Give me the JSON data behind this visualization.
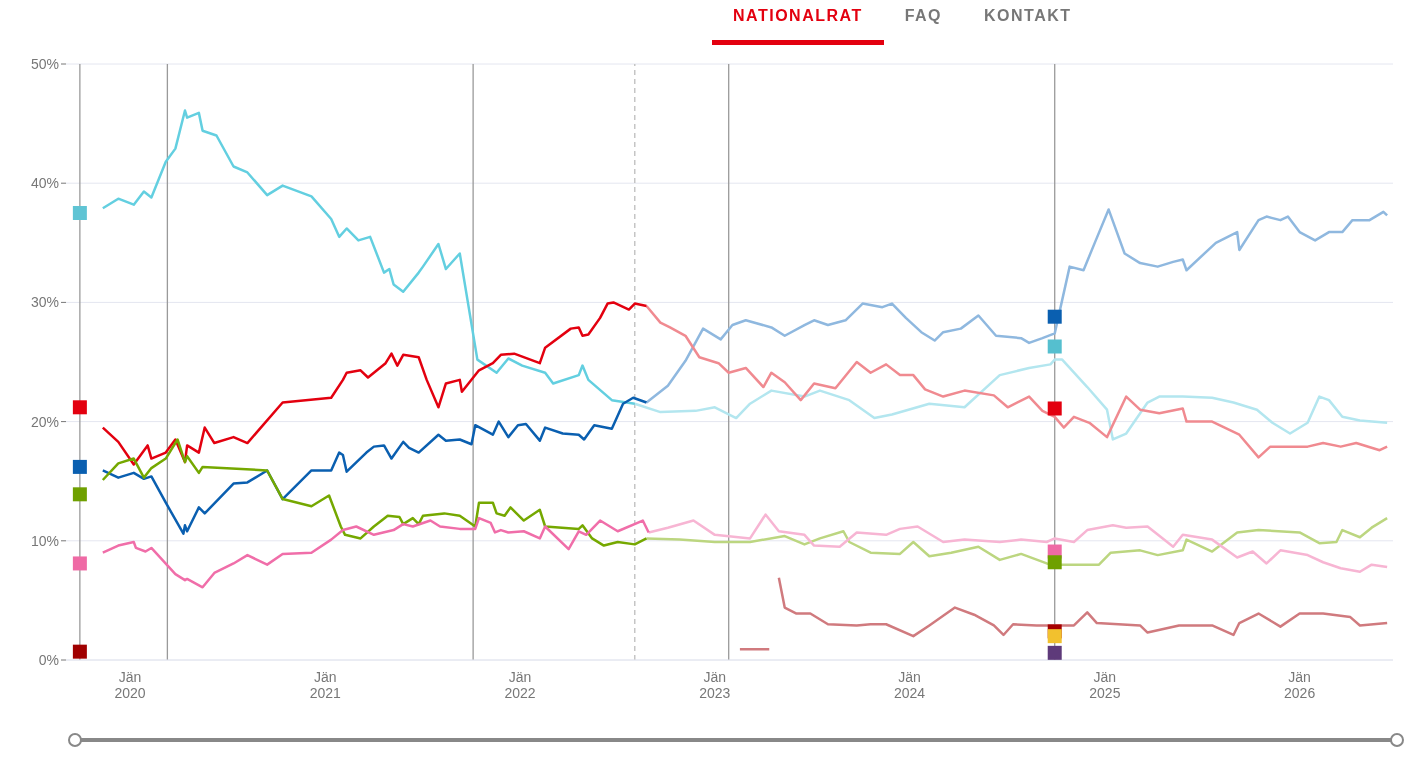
{
  "chart_data": {
    "type": "line",
    "xlim": [
      "2019-09-03",
      "2026-06-25"
    ],
    "ylim": [
      0,
      50
    ],
    "xticks": [
      {
        "value": "2020-01-01",
        "label": "Jän 2020"
      },
      {
        "value": "2021-01-01",
        "label": "Jän 2021"
      },
      {
        "value": "2022-01-01",
        "label": "Jän 2022"
      },
      {
        "value": "2023-01-01",
        "label": "Jän 2023"
      },
      {
        "value": "2024-01-01",
        "label": "Jän 2024"
      },
      {
        "value": "2025-01-01",
        "label": "Jän 2025"
      },
      {
        "value": "2026-01-01",
        "label": "Jän 2026"
      }
    ],
    "yticks": [
      {
        "value": 0,
        "label": "0%"
      },
      {
        "value": 10,
        "label": "10%"
      },
      {
        "value": 20,
        "label": "20%"
      },
      {
        "value": 30,
        "label": "30%"
      },
      {
        "value": 40,
        "label": "40%"
      },
      {
        "value": 50,
        "label": "50%"
      }
    ],
    "grid": "y",
    "marker": "none",
    "line_style": "solid",
    "annotations": [
      "NATIONALRAT",
      "FAQ",
      "KONTAKT"
    ],
    "ref_lines": [
      {
        "axis": "x",
        "value": "2019-09-29",
        "color": "#9a9a9a",
        "line_style": "solid"
      },
      {
        "axis": "x",
        "value": "2020-03-11",
        "color": "#9a9a9a",
        "line_style": "solid"
      },
      {
        "axis": "x",
        "value": "2021-10-05",
        "color": "#9a9a9a",
        "line_style": "solid"
      },
      {
        "axis": "x",
        "value": "2022-08-04",
        "color": "#bdbdbd",
        "line_style": "dashed"
      },
      {
        "axis": "x",
        "value": "2023-01-27",
        "color": "#9a9a9a",
        "line_style": "solid"
      },
      {
        "axis": "x",
        "value": "2024-09-29",
        "color": "#9a9a9a",
        "line_style": "solid"
      }
    ],
    "series": [
      {
        "color": "#b3e6ef",
        "x": [
          "2022-08-04",
          "2022-09-21",
          "2022-11-26",
          "2023-01-01",
          "2023-02-10",
          "2023-03-08",
          "2023-04-17",
          "2023-06-18",
          "2023-07-17",
          "2023-09-10",
          "2023-10-27",
          "2023-11-29",
          "2024-02-07",
          "2024-04-13",
          "2024-06-18",
          "2024-08-12",
          "2024-09-21",
          "2024-09-29",
          "2024-10-13",
          "2024-11-29",
          "2025-01-05",
          "2025-01-16",
          "2025-02-10",
          "2025-03-22",
          "2025-04-13",
          "2025-05-27",
          "2025-07-21",
          "2025-08-30",
          "2025-10-13",
          "2025-11-11",
          "2025-12-14",
          "2026-01-16",
          "2026-02-07",
          "2026-02-25",
          "2026-03-22",
          "2026-04-24",
          "2026-06-14"
        ],
        "values": [
          21.5,
          20.8,
          20.9,
          21.2,
          20.3,
          21.5,
          22.6,
          22.1,
          22.6,
          21.8,
          20.3,
          20.6,
          21.5,
          21.2,
          23.9,
          24.5,
          24.8,
          25.2,
          25.2,
          22.9,
          21.0,
          18.5,
          19.0,
          21.6,
          22.1,
          22.1,
          22.0,
          21.6,
          21.0,
          19.9,
          19.0,
          19.9,
          22.1,
          21.8,
          20.4,
          20.1,
          19.9
        ]
      },
      {
        "color": "#8fb8df",
        "x": [
          "2022-08-26",
          "2022-10-05",
          "2022-11-07",
          "2022-12-10",
          "2023-01-12",
          "2023-02-03",
          "2023-02-28",
          "2023-04-17",
          "2023-05-12",
          "2023-06-18",
          "2023-07-06",
          "2023-08-01",
          "2023-09-03",
          "2023-10-05",
          "2023-11-11",
          "2023-11-29",
          "2023-12-25",
          "2024-01-23",
          "2024-02-17",
          "2024-03-04",
          "2024-04-06",
          "2024-05-09",
          "2024-06-11",
          "2024-07-28",
          "2024-08-12",
          "2024-09-06",
          "2024-09-29",
          "2024-10-27",
          "2024-11-22",
          "2024-12-14",
          "2025-01-08",
          "2025-02-07",
          "2025-03-08",
          "2025-04-10",
          "2025-05-09",
          "2025-05-27",
          "2025-06-03",
          "2025-07-28",
          "2025-09-06",
          "2025-09-10",
          "2025-10-16",
          "2025-10-31",
          "2025-11-26",
          "2025-12-10",
          "2026-01-01",
          "2026-01-30",
          "2026-02-25",
          "2026-03-22",
          "2026-04-10",
          "2026-05-12",
          "2026-06-07",
          "2026-06-14"
        ],
        "values": [
          21.6,
          23.0,
          25.1,
          27.8,
          26.9,
          28.1,
          28.5,
          27.9,
          27.2,
          28.1,
          28.5,
          28.1,
          28.5,
          29.9,
          29.6,
          29.9,
          28.7,
          27.5,
          26.8,
          27.5,
          27.8,
          28.9,
          27.2,
          27.0,
          26.6,
          27.0,
          27.4,
          33.0,
          32.7,
          35.1,
          37.8,
          34.1,
          33.3,
          33.0,
          33.4,
          33.6,
          32.7,
          35.0,
          35.9,
          34.4,
          36.9,
          37.2,
          36.9,
          37.2,
          35.9,
          35.2,
          35.9,
          35.9,
          36.9,
          36.9,
          37.6,
          37.3
        ]
      },
      {
        "color": "#f08a90",
        "x": [
          "2022-08-26",
          "2022-09-21",
          "2022-10-09",
          "2022-11-07",
          "2022-12-03",
          "2023-01-08",
          "2023-01-27",
          "2023-02-28",
          "2023-04-02",
          "2023-04-17",
          "2023-05-12",
          "2023-06-11",
          "2023-07-06",
          "2023-08-15",
          "2023-09-24",
          "2023-10-20",
          "2023-11-18",
          "2023-12-14",
          "2024-01-08",
          "2024-01-30",
          "2024-03-04",
          "2024-04-13",
          "2024-06-07",
          "2024-07-03",
          "2024-08-12",
          "2024-09-06",
          "2024-09-29",
          "2024-10-16",
          "2024-11-04",
          "2024-12-03",
          "2025-01-05",
          "2025-02-10",
          "2025-03-08",
          "2025-04-13",
          "2025-05-27",
          "2025-06-03",
          "2025-07-21",
          "2025-09-10",
          "2025-10-16",
          "2025-11-07",
          "2026-01-16",
          "2026-02-14",
          "2026-03-19",
          "2026-04-17",
          "2026-05-31",
          "2026-06-14"
        ],
        "values": [
          29.7,
          28.3,
          27.9,
          27.2,
          25.4,
          24.9,
          24.1,
          24.5,
          22.9,
          24.1,
          23.3,
          21.8,
          23.2,
          22.8,
          25.0,
          24.1,
          24.8,
          23.9,
          23.9,
          22.7,
          22.1,
          22.6,
          22.2,
          21.2,
          22.1,
          20.9,
          20.4,
          19.5,
          20.4,
          19.9,
          18.7,
          22.1,
          21.0,
          20.7,
          21.1,
          20.0,
          20.0,
          18.9,
          17.0,
          17.9,
          17.9,
          18.2,
          17.9,
          18.2,
          17.6,
          17.9
        ]
      },
      {
        "color": "#bcd680",
        "x": [
          "2022-08-26",
          "2022-10-27",
          "2023-01-01",
          "2023-03-08",
          "2023-05-12",
          "2023-06-18",
          "2023-07-17",
          "2023-08-30",
          "2023-09-10",
          "2023-10-20",
          "2023-12-14",
          "2024-01-08",
          "2024-02-07",
          "2024-03-19",
          "2024-05-09",
          "2024-06-18",
          "2024-07-28",
          "2024-09-14",
          "2024-09-29",
          "2024-12-21",
          "2025-01-12",
          "2025-03-08",
          "2025-04-10",
          "2025-05-27",
          "2025-06-03",
          "2025-07-21",
          "2025-09-06",
          "2025-10-16",
          "2026-01-01",
          "2026-02-07",
          "2026-03-11",
          "2026-03-22",
          "2026-04-24",
          "2026-05-16",
          "2026-06-14"
        ],
        "values": [
          10.2,
          10.1,
          9.9,
          9.9,
          10.4,
          9.7,
          10.2,
          10.8,
          9.9,
          9.0,
          8.9,
          9.9,
          8.7,
          9.0,
          9.5,
          8.4,
          8.9,
          8.1,
          8.0,
          8.0,
          9.0,
          9.2,
          8.8,
          9.2,
          10.1,
          9.1,
          10.7,
          10.9,
          10.7,
          9.8,
          9.9,
          10.9,
          10.3,
          11.1,
          11.9
        ]
      },
      {
        "color": "#f7b5d3",
        "x": [
          "2022-08-30",
          "2022-10-05",
          "2022-11-22",
          "2023-01-01",
          "2023-03-08",
          "2023-04-06",
          "2023-05-01",
          "2023-06-18",
          "2023-07-06",
          "2023-08-23",
          "2023-09-24",
          "2023-11-18",
          "2023-12-14",
          "2024-01-16",
          "2024-03-04",
          "2024-04-13",
          "2024-06-18",
          "2024-07-28",
          "2024-09-14",
          "2024-09-29",
          "2024-11-04",
          "2024-11-29",
          "2025-01-16",
          "2025-02-10",
          "2025-03-22",
          "2025-05-09",
          "2025-05-27",
          "2025-07-21",
          "2025-09-06",
          "2025-10-05",
          "2025-10-31",
          "2025-11-26",
          "2026-01-16",
          "2026-02-14",
          "2026-03-19",
          "2026-04-24",
          "2026-05-16",
          "2026-06-14"
        ],
        "values": [
          10.7,
          11.1,
          11.7,
          10.5,
          10.2,
          12.2,
          10.8,
          10.5,
          9.6,
          9.5,
          10.7,
          10.5,
          11.0,
          11.2,
          9.9,
          10.1,
          9.9,
          10.1,
          9.9,
          10.2,
          9.9,
          10.9,
          11.3,
          11.1,
          11.2,
          9.5,
          10.5,
          10.1,
          8.6,
          9.1,
          8.1,
          9.2,
          8.8,
          8.2,
          7.7,
          7.4,
          8.0,
          7.8
        ]
      },
      {
        "color": "#d07a7e",
        "x": [
          "2023-02-17",
          "2023-04-13",
          "2023-04-21",
          "2023-05-01",
          "2023-05-12",
          "2023-06-03",
          "2023-06-29",
          "2023-08-01",
          "2023-09-24",
          "2023-10-20",
          "2023-11-18",
          "2024-01-08",
          "2024-02-07",
          "2024-03-26",
          "2024-05-01",
          "2024-06-07",
          "2024-06-25",
          "2024-07-13",
          "2024-08-26",
          "2024-09-14",
          "2024-09-29",
          "2024-11-04",
          "2024-11-29",
          "2024-12-17",
          "2025-03-08",
          "2025-03-22",
          "2025-05-20",
          "2025-07-21",
          "2025-08-30",
          "2025-09-10",
          "2025-10-16",
          "2025-11-26",
          "2026-01-01",
          "2026-02-14",
          "2026-04-06",
          "2026-04-24",
          "2026-06-14"
        ],
        "values": [
          0.9,
          0.9,
          null,
          6.9,
          4.4,
          3.9,
          3.9,
          3.0,
          2.9,
          3.0,
          3.0,
          2.0,
          2.9,
          4.4,
          3.8,
          2.9,
          2.1,
          3.0,
          2.9,
          2.9,
          2.9,
          2.9,
          4.0,
          3.1,
          2.9,
          2.3,
          2.9,
          2.9,
          2.1,
          3.1,
          3.9,
          2.8,
          3.9,
          3.9,
          3.6,
          2.9,
          3.1
        ]
      },
      {
        "color": "#63cfe0",
        "x": [
          "2019-11-11",
          "2019-12-10",
          "2020-01-08",
          "2020-01-27",
          "2020-02-10",
          "2020-03-08",
          "2020-03-26",
          "2020-04-13",
          "2020-04-17",
          "2020-05-09",
          "2020-05-16",
          "2020-06-11",
          "2020-07-13",
          "2020-08-08",
          "2020-09-14",
          "2020-10-13",
          "2020-12-06",
          "2021-01-12",
          "2021-01-27",
          "2021-02-10",
          "2021-03-04",
          "2021-03-26",
          "2021-04-21",
          "2021-05-01",
          "2021-05-09",
          "2021-05-27",
          "2021-06-25",
          "2021-07-03",
          "2021-08-01",
          "2021-08-15",
          "2021-09-10",
          "2021-10-13",
          "2021-11-18",
          "2021-12-10",
          "2022-01-05",
          "2022-02-17",
          "2022-03-04",
          "2022-04-21",
          "2022-04-28",
          "2022-05-09",
          "2022-06-22",
          "2022-08-04"
        ],
        "values": [
          37.9,
          38.7,
          38.2,
          39.3,
          38.8,
          41.8,
          42.9,
          46.1,
          45.5,
          45.9,
          44.4,
          44.0,
          41.4,
          40.9,
          39.0,
          39.8,
          38.9,
          37.0,
          35.5,
          36.2,
          35.2,
          35.5,
          32.5,
          32.8,
          31.5,
          30.9,
          32.5,
          33.0,
          34.9,
          32.8,
          34.1,
          25.2,
          24.1,
          25.3,
          24.7,
          24.1,
          23.2,
          23.9,
          24.7,
          23.5,
          21.8,
          21.5
        ]
      },
      {
        "color": "#0a5fb0",
        "x": [
          "2019-11-11",
          "2019-12-10",
          "2020-01-08",
          "2020-01-27",
          "2020-02-10",
          "2020-03-08",
          "2020-04-10",
          "2020-04-13",
          "2020-04-17",
          "2020-05-09",
          "2020-05-20",
          "2020-07-13",
          "2020-08-08",
          "2020-09-14",
          "2020-10-13",
          "2020-12-06",
          "2021-01-12",
          "2021-01-27",
          "2021-02-03",
          "2021-02-10",
          "2021-03-19",
          "2021-04-02",
          "2021-04-21",
          "2021-05-05",
          "2021-05-27",
          "2021-06-07",
          "2021-06-25",
          "2021-08-01",
          "2021-08-15",
          "2021-09-10",
          "2021-10-02",
          "2021-10-09",
          "2021-11-11",
          "2021-11-22",
          "2021-12-10",
          "2021-12-28",
          "2022-01-12",
          "2022-02-07",
          "2022-02-17",
          "2022-03-22",
          "2022-04-21",
          "2022-05-01",
          "2022-05-20",
          "2022-06-22",
          "2022-07-13",
          "2022-08-01",
          "2022-08-26"
        ],
        "values": [
          15.9,
          15.3,
          15.7,
          15.2,
          15.4,
          13.2,
          10.6,
          11.3,
          10.8,
          12.8,
          12.3,
          14.8,
          14.9,
          15.9,
          13.5,
          15.9,
          15.9,
          17.4,
          17.2,
          15.8,
          17.4,
          17.9,
          18.0,
          16.9,
          18.3,
          17.8,
          17.4,
          18.9,
          18.4,
          18.5,
          18.1,
          19.7,
          18.9,
          20.0,
          18.7,
          19.7,
          19.8,
          18.4,
          19.5,
          19.0,
          18.9,
          18.5,
          19.7,
          19.4,
          21.5,
          22.0,
          21.6
        ]
      },
      {
        "color": "#e3000f",
        "x": [
          "2019-11-11",
          "2019-12-10",
          "2020-01-08",
          "2020-02-03",
          "2020-02-10",
          "2020-03-08",
          "2020-03-26",
          "2020-04-13",
          "2020-04-17",
          "2020-05-09",
          "2020-05-20",
          "2020-06-07",
          "2020-07-13",
          "2020-08-08",
          "2020-10-13",
          "2021-01-12",
          "2021-02-03",
          "2021-02-10",
          "2021-03-08",
          "2021-03-22",
          "2021-04-24",
          "2021-05-05",
          "2021-05-16",
          "2021-05-27",
          "2021-06-25",
          "2021-07-10",
          "2021-08-01",
          "2021-08-15",
          "2021-09-10",
          "2021-09-14",
          "2021-10-16",
          "2021-11-11",
          "2021-11-26",
          "2021-12-21",
          "2022-02-07",
          "2022-02-17",
          "2022-04-06",
          "2022-04-21",
          "2022-04-28",
          "2022-05-09",
          "2022-05-31",
          "2022-06-14",
          "2022-06-25",
          "2022-07-24",
          "2022-08-04",
          "2022-08-26"
        ],
        "values": [
          19.5,
          18.3,
          16.4,
          18.0,
          16.9,
          17.4,
          18.5,
          16.6,
          18.0,
          17.4,
          19.5,
          18.2,
          18.7,
          18.2,
          21.6,
          22.0,
          23.5,
          24.1,
          24.3,
          23.7,
          24.9,
          25.7,
          24.7,
          25.6,
          25.4,
          23.5,
          21.2,
          23.2,
          23.5,
          22.5,
          24.3,
          24.9,
          25.6,
          25.7,
          24.9,
          26.2,
          27.8,
          27.9,
          27.2,
          27.3,
          28.7,
          29.9,
          30.0,
          29.4,
          29.9,
          29.7
        ]
      },
      {
        "color": "#75a800",
        "x": [
          "2019-11-11",
          "2019-12-10",
          "2020-01-08",
          "2020-01-27",
          "2020-02-10",
          "2020-03-08",
          "2020-03-30",
          "2020-04-13",
          "2020-04-17",
          "2020-05-09",
          "2020-05-16",
          "2020-09-14",
          "2020-10-13",
          "2020-12-06",
          "2021-01-08",
          "2021-01-30",
          "2021-02-07",
          "2021-03-08",
          "2021-04-02",
          "2021-04-28",
          "2021-05-20",
          "2021-05-27",
          "2021-06-14",
          "2021-06-25",
          "2021-07-03",
          "2021-08-12",
          "2021-09-10",
          "2021-10-09",
          "2021-10-16",
          "2021-11-11",
          "2021-11-18",
          "2021-12-03",
          "2021-12-14",
          "2022-01-08",
          "2022-02-07",
          "2022-02-17",
          "2022-04-21",
          "2022-04-28",
          "2022-05-16",
          "2022-06-07",
          "2022-07-03",
          "2022-08-04",
          "2022-08-26"
        ],
        "values": [
          15.1,
          16.5,
          16.9,
          15.3,
          16.1,
          16.9,
          18.5,
          16.6,
          17.1,
          15.7,
          16.2,
          15.9,
          13.5,
          12.9,
          13.8,
          11.2,
          10.5,
          10.2,
          11.2,
          12.1,
          12.0,
          11.4,
          11.9,
          11.4,
          12.1,
          12.3,
          12.1,
          11.2,
          13.2,
          13.2,
          12.3,
          12.1,
          12.8,
          11.7,
          12.6,
          11.2,
          11.0,
          11.3,
          10.2,
          9.6,
          9.9,
          9.7,
          10.2
        ]
      },
      {
        "color": "#f06ea9",
        "x": [
          "2019-11-11",
          "2019-12-10",
          "2020-01-08",
          "2020-01-12",
          "2020-01-30",
          "2020-02-10",
          "2020-03-26",
          "2020-04-13",
          "2020-04-17",
          "2020-05-16",
          "2020-06-07",
          "2020-07-13",
          "2020-08-08",
          "2020-09-14",
          "2020-10-13",
          "2020-12-06",
          "2021-01-12",
          "2021-02-03",
          "2021-02-28",
          "2021-04-02",
          "2021-05-09",
          "2021-05-27",
          "2021-06-14",
          "2021-07-17",
          "2021-08-04",
          "2021-09-10",
          "2021-10-09",
          "2021-10-16",
          "2021-11-07",
          "2021-11-15",
          "2021-11-26",
          "2021-12-10",
          "2022-01-08",
          "2022-02-07",
          "2022-02-17",
          "2022-04-02",
          "2022-04-21",
          "2022-05-05",
          "2022-05-31",
          "2022-07-03",
          "2022-08-19",
          "2022-08-30"
        ],
        "values": [
          9.0,
          9.6,
          9.9,
          9.4,
          9.1,
          9.4,
          7.2,
          6.7,
          6.8,
          6.1,
          7.3,
          8.1,
          8.8,
          8.0,
          8.9,
          9.0,
          10.1,
          10.9,
          11.2,
          10.5,
          10.9,
          11.4,
          11.2,
          11.7,
          11.2,
          11.0,
          11.0,
          11.9,
          11.5,
          10.7,
          10.9,
          10.7,
          10.8,
          10.2,
          11.2,
          9.3,
          10.8,
          10.5,
          11.7,
          10.8,
          11.7,
          10.7
        ]
      },
      {
        "type": "scatter",
        "marker": "square",
        "x": [
          "2019-09-29",
          "2019-09-29",
          "2019-09-29",
          "2019-09-29",
          "2019-09-29",
          "2019-09-29"
        ],
        "values": [
          37.5,
          21.2,
          16.2,
          13.9,
          8.1,
          0.7
        ],
        "colors": [
          "#5fc4d4",
          "#e3000f",
          "#0a5fb0",
          "#6fa000",
          "#ef6aa5",
          "#a00000"
        ]
      },
      {
        "type": "scatter",
        "marker": "square",
        "x": [
          "2024-09-29",
          "2024-09-29",
          "2024-09-29",
          "2024-09-29",
          "2024-09-29",
          "2024-09-29",
          "2024-09-29",
          "2024-09-29"
        ],
        "values": [
          28.8,
          26.3,
          21.1,
          9.1,
          8.2,
          2.4,
          2.0,
          0.6
        ],
        "colors": [
          "#0a5fb0",
          "#55bfcf",
          "#e3000f",
          "#ef6aa5",
          "#6fa000",
          "#a50000",
          "#f2c12e",
          "#5e3a7a"
        ]
      }
    ]
  }
}
